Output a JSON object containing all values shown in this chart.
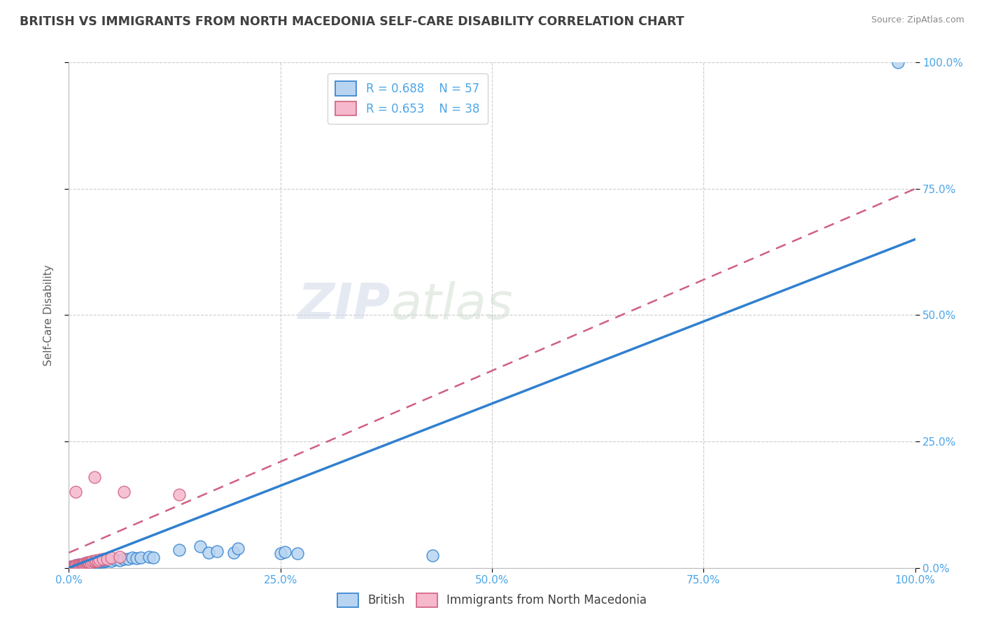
{
  "title": "BRITISH VS IMMIGRANTS FROM NORTH MACEDONIA SELF-CARE DISABILITY CORRELATION CHART",
  "source": "Source: ZipAtlas.com",
  "ylabel": "Self-Care Disability",
  "watermark": "ZIPatlas",
  "british_color": "#b8d4f0",
  "macedonia_color": "#f5b8cc",
  "british_line_color": "#3080d0",
  "macedonia_line_color": "#d06080",
  "grid_color": "#cccccc",
  "title_color": "#404040",
  "axis_label_color": "#606060",
  "tick_color": "#4da6e8",
  "xlim": [
    0,
    1.0
  ],
  "ylim": [
    0,
    1.0
  ],
  "xticks": [
    0.0,
    0.25,
    0.5,
    0.75,
    1.0
  ],
  "yticks": [
    0.0,
    0.25,
    0.5,
    0.75,
    1.0
  ],
  "xtick_labels": [
    "0.0%",
    "25.0%",
    "50.0%",
    "75.0%",
    "100.0%"
  ],
  "ytick_labels": [
    "0.0%",
    "25.0%",
    "50.0%",
    "75.0%",
    "100.0%"
  ],
  "british_scatter": [
    [
      0.002,
      0.002
    ],
    [
      0.003,
      0.001
    ],
    [
      0.004,
      0.003
    ],
    [
      0.005,
      0.002
    ],
    [
      0.006,
      0.004
    ],
    [
      0.007,
      0.003
    ],
    [
      0.008,
      0.005
    ],
    [
      0.009,
      0.004
    ],
    [
      0.01,
      0.003
    ],
    [
      0.011,
      0.006
    ],
    [
      0.012,
      0.004
    ],
    [
      0.013,
      0.005
    ],
    [
      0.014,
      0.003
    ],
    [
      0.015,
      0.007
    ],
    [
      0.016,
      0.005
    ],
    [
      0.017,
      0.006
    ],
    [
      0.018,
      0.004
    ],
    [
      0.019,
      0.007
    ],
    [
      0.02,
      0.005
    ],
    [
      0.021,
      0.006
    ],
    [
      0.022,
      0.008
    ],
    [
      0.023,
      0.007
    ],
    [
      0.024,
      0.006
    ],
    [
      0.025,
      0.009
    ],
    [
      0.026,
      0.008
    ],
    [
      0.027,
      0.007
    ],
    [
      0.028,
      0.01
    ],
    [
      0.03,
      0.009
    ],
    [
      0.032,
      0.011
    ],
    [
      0.034,
      0.01
    ],
    [
      0.036,
      0.012
    ],
    [
      0.038,
      0.013
    ],
    [
      0.04,
      0.012
    ],
    [
      0.042,
      0.014
    ],
    [
      0.044,
      0.013
    ],
    [
      0.046,
      0.015
    ],
    [
      0.05,
      0.014
    ],
    [
      0.055,
      0.016
    ],
    [
      0.06,
      0.015
    ],
    [
      0.065,
      0.017
    ],
    [
      0.07,
      0.018
    ],
    [
      0.075,
      0.02
    ],
    [
      0.08,
      0.019
    ],
    [
      0.085,
      0.021
    ],
    [
      0.095,
      0.022
    ],
    [
      0.1,
      0.02
    ],
    [
      0.13,
      0.035
    ],
    [
      0.155,
      0.042
    ],
    [
      0.165,
      0.03
    ],
    [
      0.175,
      0.033
    ],
    [
      0.195,
      0.03
    ],
    [
      0.2,
      0.038
    ],
    [
      0.25,
      0.028
    ],
    [
      0.255,
      0.032
    ],
    [
      0.27,
      0.028
    ],
    [
      0.43,
      0.025
    ],
    [
      0.98,
      1.0
    ]
  ],
  "macedonia_scatter": [
    [
      0.002,
      0.001
    ],
    [
      0.003,
      0.002
    ],
    [
      0.004,
      0.003
    ],
    [
      0.005,
      0.002
    ],
    [
      0.006,
      0.004
    ],
    [
      0.007,
      0.003
    ],
    [
      0.008,
      0.005
    ],
    [
      0.009,
      0.004
    ],
    [
      0.01,
      0.003
    ],
    [
      0.011,
      0.005
    ],
    [
      0.012,
      0.004
    ],
    [
      0.013,
      0.006
    ],
    [
      0.014,
      0.005
    ],
    [
      0.015,
      0.007
    ],
    [
      0.016,
      0.006
    ],
    [
      0.017,
      0.008
    ],
    [
      0.018,
      0.007
    ],
    [
      0.019,
      0.009
    ],
    [
      0.02,
      0.008
    ],
    [
      0.021,
      0.01
    ],
    [
      0.022,
      0.009
    ],
    [
      0.023,
      0.011
    ],
    [
      0.024,
      0.01
    ],
    [
      0.025,
      0.012
    ],
    [
      0.026,
      0.011
    ],
    [
      0.028,
      0.013
    ],
    [
      0.03,
      0.014
    ],
    [
      0.032,
      0.015
    ],
    [
      0.034,
      0.014
    ],
    [
      0.036,
      0.016
    ],
    [
      0.04,
      0.017
    ],
    [
      0.045,
      0.018
    ],
    [
      0.05,
      0.02
    ],
    [
      0.06,
      0.022
    ],
    [
      0.008,
      0.15
    ],
    [
      0.03,
      0.18
    ],
    [
      0.065,
      0.15
    ],
    [
      0.13,
      0.145
    ]
  ],
  "british_reg_line": [
    [
      0.0,
      0.0
    ],
    [
      1.0,
      0.65
    ]
  ],
  "macedonia_reg_line": [
    [
      0.0,
      0.03
    ],
    [
      1.0,
      0.75
    ]
  ]
}
